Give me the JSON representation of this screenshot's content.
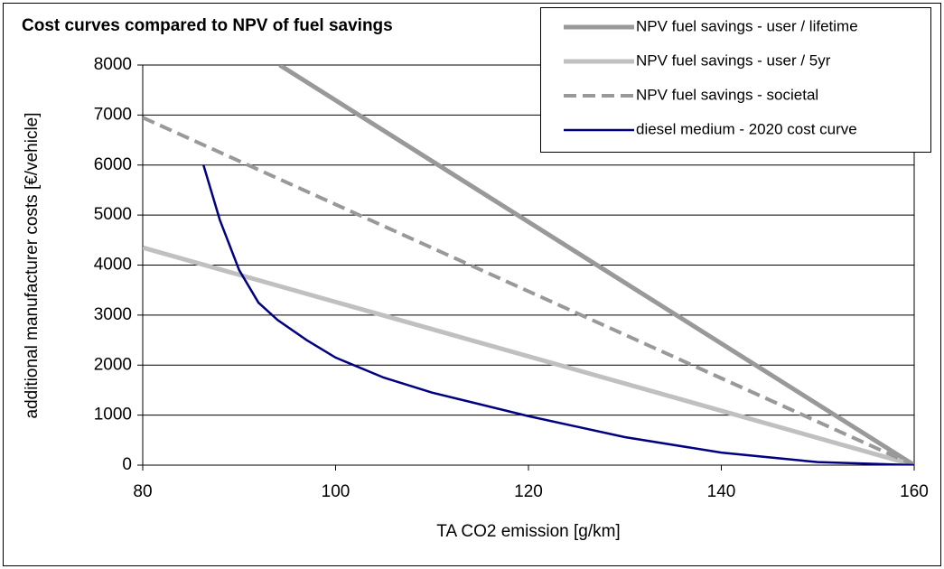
{
  "chart_data": {
    "type": "line",
    "title": "Cost curves compared to NPV of fuel savings",
    "x_label": "TA CO2 emission [g/km]",
    "y_label": "additional manufacturer costs [€/vehicle]",
    "xlim": [
      80,
      160
    ],
    "xticks": [
      80,
      100,
      120,
      140,
      160
    ],
    "ylim": [
      0,
      8000
    ],
    "yticks": [
      0,
      1000,
      2000,
      3000,
      4000,
      5000,
      6000,
      7000,
      8000
    ],
    "grid": true,
    "legend": "upper right",
    "series": [
      {
        "name": "NPV fuel savings - user / lifetime",
        "color": "#999999",
        "width": 5,
        "style": "solid",
        "x": [
          94.2,
          160
        ],
        "values": [
          8000,
          0
        ]
      },
      {
        "name": "NPV fuel savings - user / 5yr",
        "color": "#c0c0c0",
        "width": 5,
        "style": "solid",
        "x": [
          80,
          160
        ],
        "values": [
          4350,
          0
        ]
      },
      {
        "name": "NPV fuel savings - societal",
        "color": "#999999",
        "width": 4,
        "style": "dashed",
        "x": [
          80,
          160
        ],
        "values": [
          6950,
          0
        ]
      },
      {
        "name": "diesel medium - 2020 cost curve",
        "color": "#000080",
        "width": 2.5,
        "style": "solid",
        "x": [
          86.3,
          88,
          90,
          92,
          94,
          97,
          100,
          105,
          110,
          120,
          130,
          140,
          150,
          160
        ],
        "values": [
          6000,
          4900,
          3900,
          3250,
          2900,
          2500,
          2150,
          1750,
          1450,
          980,
          560,
          250,
          60,
          0
        ]
      }
    ]
  }
}
